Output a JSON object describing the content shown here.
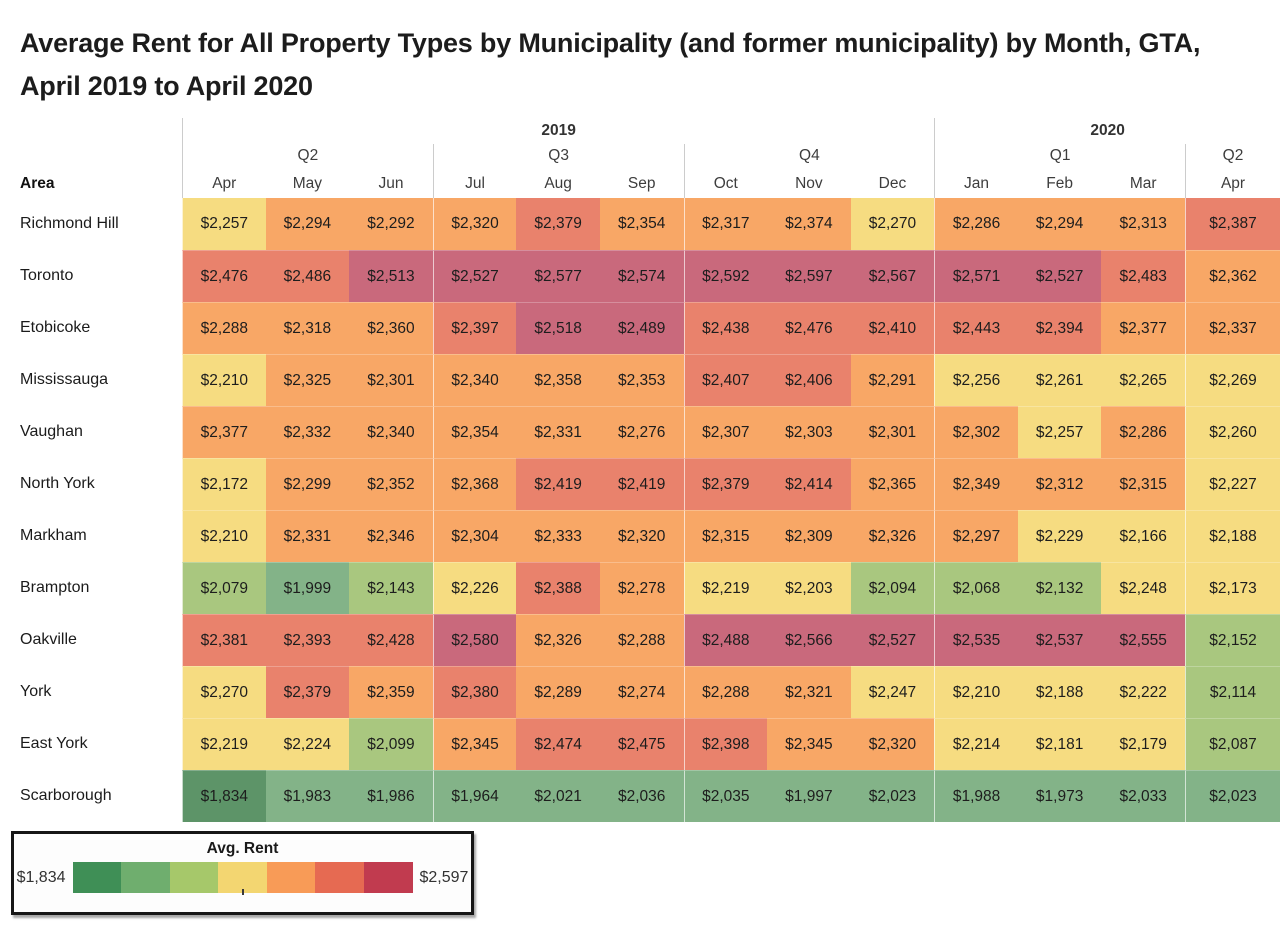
{
  "title": "Average Rent for All Property Types by Municipality (and former municipality) by Month, GTA, April 2019 to April 2020",
  "chart_data": {
    "type": "heatmap",
    "title": "Average Rent for All Property Types by Municipality (and former municipality) by Month, GTA, April 2019 to April 2020",
    "area_header": "Area",
    "years": [
      {
        "label": "2019",
        "quarters": [
          {
            "label": "Q2",
            "months": [
              "Apr",
              "May",
              "Jun"
            ]
          },
          {
            "label": "Q3",
            "months": [
              "Jul",
              "Aug",
              "Sep"
            ]
          },
          {
            "label": "Q4",
            "months": [
              "Oct",
              "Nov",
              "Dec"
            ]
          }
        ]
      },
      {
        "label": "2020",
        "quarters": [
          {
            "label": "Q1",
            "months": [
              "Jan",
              "Feb",
              "Mar"
            ]
          },
          {
            "label": "Q2",
            "months": [
              "Apr"
            ]
          }
        ]
      }
    ],
    "rows": [
      {
        "area": "Richmond Hill",
        "values": [
          2257,
          2294,
          2292,
          2320,
          2379,
          2354,
          2317,
          2374,
          2270,
          2286,
          2294,
          2313,
          2387
        ]
      },
      {
        "area": "Toronto",
        "values": [
          2476,
          2486,
          2513,
          2527,
          2577,
          2574,
          2592,
          2597,
          2567,
          2571,
          2527,
          2483,
          2362
        ]
      },
      {
        "area": "Etobicoke",
        "values": [
          2288,
          2318,
          2360,
          2397,
          2518,
          2489,
          2438,
          2476,
          2410,
          2443,
          2394,
          2377,
          2337
        ]
      },
      {
        "area": "Mississauga",
        "values": [
          2210,
          2325,
          2301,
          2340,
          2358,
          2353,
          2407,
          2406,
          2291,
          2256,
          2261,
          2265,
          2269
        ]
      },
      {
        "area": "Vaughan",
        "values": [
          2377,
          2332,
          2340,
          2354,
          2331,
          2276,
          2307,
          2303,
          2301,
          2302,
          2257,
          2286,
          2260
        ]
      },
      {
        "area": "North York",
        "values": [
          2172,
          2299,
          2352,
          2368,
          2419,
          2419,
          2379,
          2414,
          2365,
          2349,
          2312,
          2315,
          2227
        ]
      },
      {
        "area": "Markham",
        "values": [
          2210,
          2331,
          2346,
          2304,
          2333,
          2320,
          2315,
          2309,
          2326,
          2297,
          2229,
          2166,
          2188
        ]
      },
      {
        "area": "Brampton",
        "values": [
          2079,
          1999,
          2143,
          2226,
          2388,
          2278,
          2219,
          2203,
          2094,
          2068,
          2132,
          2248,
          2173
        ]
      },
      {
        "area": "Oakville",
        "values": [
          2381,
          2393,
          2428,
          2580,
          2326,
          2288,
          2488,
          2566,
          2527,
          2535,
          2537,
          2555,
          2152
        ]
      },
      {
        "area": "York",
        "values": [
          2270,
          2379,
          2359,
          2380,
          2289,
          2274,
          2288,
          2321,
          2247,
          2210,
          2188,
          2222,
          2114
        ]
      },
      {
        "area": "East York",
        "values": [
          2219,
          2224,
          2099,
          2345,
          2474,
          2475,
          2398,
          2345,
          2320,
          2214,
          2181,
          2179,
          2087
        ]
      },
      {
        "area": "Scarborough",
        "values": [
          1834,
          1983,
          1986,
          1964,
          2021,
          2036,
          2035,
          1997,
          2023,
          1988,
          1973,
          2033,
          2023
        ]
      }
    ],
    "value_format": "$#,###",
    "cell_palette": [
      "#5d9468",
      "#83b388",
      "#a9c77f",
      "#f6dc81",
      "#f8a766",
      "#e9826c",
      "#c9697c"
    ],
    "bucket_bounds_inclusive": [
      1943,
      2052,
      2161,
      2270
    ],
    "bucket_bounds_exclusive": [
      2379,
      2488
    ],
    "legend": {
      "title": "Avg. Rent",
      "min": 1834,
      "max": 2597,
      "min_label": "$1,834",
      "max_label": "$2,597",
      "palette": [
        "#3f8f56",
        "#6fae6e",
        "#a6c86a",
        "#f3d671",
        "#f89b57",
        "#e66a52",
        "#c13b4f"
      ],
      "position": "bottom-left"
    },
    "grid": "quarter-separators",
    "legend_box_border": "#161616"
  }
}
